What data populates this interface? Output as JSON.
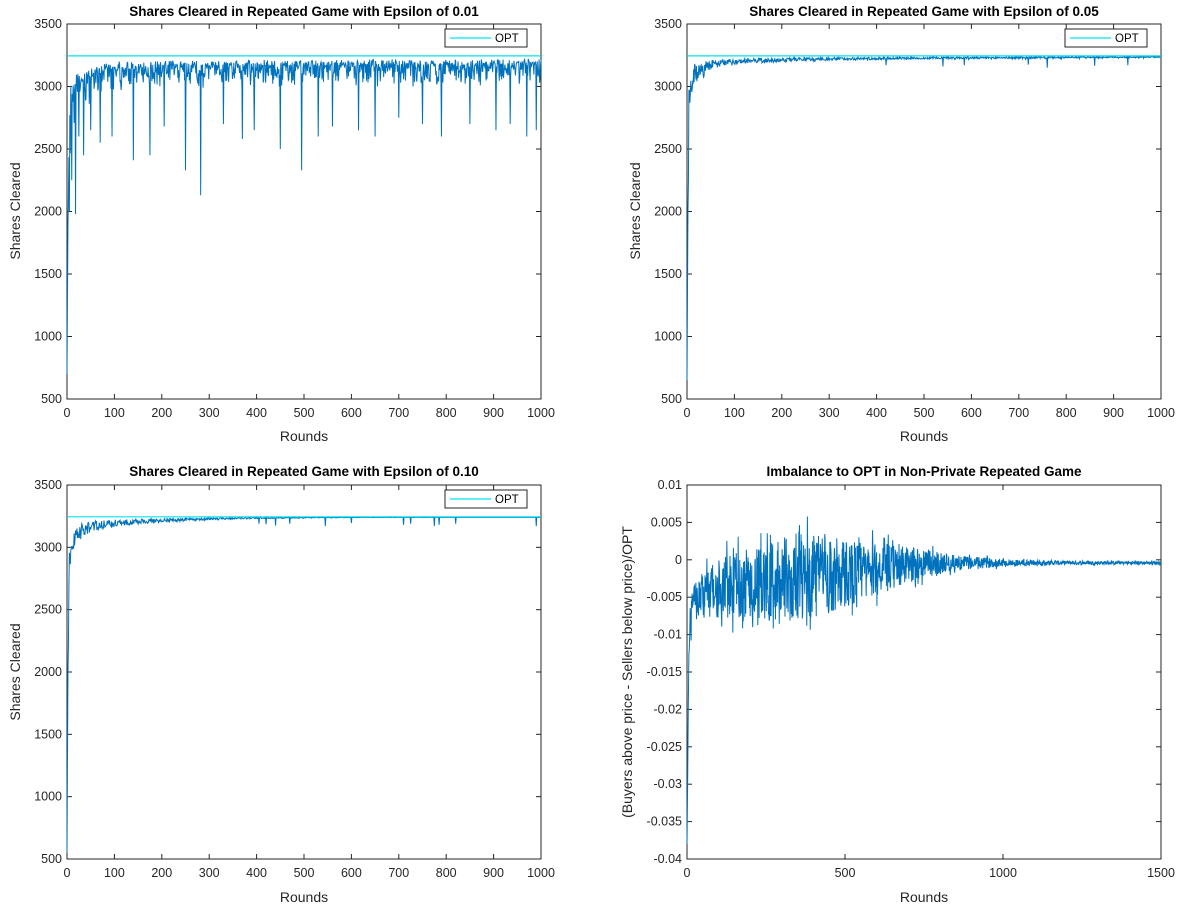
{
  "chart_data": [
    {
      "type": "line",
      "title": "Shares Cleared in Repeated Game with Epsilon of 0.01",
      "xlabel": "Rounds",
      "ylabel": "Shares Cleared",
      "xlim": [
        0,
        1000
      ],
      "ylim": [
        500,
        3500
      ],
      "xticks": [
        "0",
        "100",
        "200",
        "300",
        "400",
        "500",
        "600",
        "700",
        "800",
        "900",
        "1000"
      ],
      "yticks": [
        "500",
        "1000",
        "1500",
        "2000",
        "2500",
        "3000",
        "3500"
      ],
      "legend": {
        "entries": [
          "OPT"
        ],
        "placement": "top-right"
      },
      "grid": false,
      "colors": {
        "series": "#0072BD",
        "opt": "#00E5EE"
      },
      "series": [
        {
          "values_note_x": [
            0,
            2,
            5,
            8,
            12,
            20,
            30,
            45,
            60,
            80,
            100,
            130,
            160,
            200,
            250,
            300,
            400,
            500,
            600,
            700,
            800,
            900,
            1000
          ],
          "x": [
            0,
            2,
            5,
            8,
            12,
            20,
            30,
            45,
            60,
            80,
            100,
            130,
            160,
            200,
            250,
            300,
            400,
            500,
            600,
            700,
            800,
            900,
            1000
          ],
          "y": [
            700,
            1900,
            2500,
            2700,
            2850,
            2950,
            3020,
            3070,
            3100,
            3120,
            3140,
            3150,
            3155,
            3160,
            3165,
            3170,
            3172,
            3175,
            3178,
            3180,
            3182,
            3185,
            3190
          ]
        },
        {
          "name": "OPT",
          "x": [
            0,
            1000
          ],
          "y": [
            3245,
            3245
          ]
        }
      ],
      "dips": [
        [
          5,
          2000
        ],
        [
          10,
          2250
        ],
        [
          18,
          1980
        ],
        [
          25,
          2600
        ],
        [
          35,
          2450
        ],
        [
          50,
          2650
        ],
        [
          70,
          2550
        ],
        [
          95,
          2600
        ],
        [
          140,
          2410
        ],
        [
          175,
          2450
        ],
        [
          205,
          2680
        ],
        [
          250,
          2330
        ],
        [
          282,
          2130
        ],
        [
          330,
          2700
        ],
        [
          370,
          2580
        ],
        [
          395,
          2650
        ],
        [
          450,
          2500
        ],
        [
          495,
          2330
        ],
        [
          530,
          2600
        ],
        [
          560,
          2680
        ],
        [
          615,
          2650
        ],
        [
          650,
          2600
        ],
        [
          700,
          2750
        ],
        [
          750,
          2700
        ],
        [
          790,
          2600
        ],
        [
          850,
          2700
        ],
        [
          905,
          2650
        ],
        [
          935,
          2700
        ],
        [
          970,
          2600
        ],
        [
          990,
          2650
        ]
      ],
      "noise": 0.7
    },
    {
      "type": "line",
      "title": "Shares Cleared in Repeated Game with Epsilon of 0.05",
      "xlabel": "Rounds",
      "ylabel": "Shares Cleared",
      "xlim": [
        0,
        1000
      ],
      "ylim": [
        500,
        3500
      ],
      "xticks": [
        "0",
        "100",
        "200",
        "300",
        "400",
        "500",
        "600",
        "700",
        "800",
        "900",
        "1000"
      ],
      "yticks": [
        "500",
        "1000",
        "1500",
        "2000",
        "2500",
        "3000",
        "3500"
      ],
      "legend": {
        "entries": [
          "OPT"
        ],
        "placement": "top-right"
      },
      "grid": false,
      "colors": {
        "series": "#0072BD",
        "opt": "#00E5EE"
      },
      "series": [
        {
          "x": [
            0,
            2,
            5,
            8,
            12,
            20,
            30,
            45,
            60,
            80,
            100,
            130,
            160,
            200,
            250,
            300,
            400,
            500,
            600,
            700,
            800,
            900,
            1000
          ],
          "y": [
            650,
            2000,
            2700,
            2900,
            3000,
            3060,
            3100,
            3130,
            3150,
            3165,
            3175,
            3185,
            3190,
            3200,
            3205,
            3210,
            3215,
            3220,
            3222,
            3225,
            3228,
            3230,
            3232
          ]
        },
        {
          "name": "OPT",
          "x": [
            0,
            1000
          ],
          "y": [
            3245,
            3245
          ]
        }
      ],
      "dips": [
        [
          420,
          3170
        ],
        [
          540,
          3160
        ],
        [
          585,
          3170
        ],
        [
          720,
          3175
        ],
        [
          760,
          3150
        ],
        [
          860,
          3165
        ],
        [
          930,
          3170
        ]
      ],
      "noise": 0.15
    },
    {
      "type": "line",
      "title": "Shares Cleared in Repeated Game with Epsilon of 0.10",
      "xlabel": "Rounds",
      "ylabel": "Shares Cleared",
      "xlim": [
        0,
        1000
      ],
      "ylim": [
        500,
        3500
      ],
      "xticks": [
        "0",
        "100",
        "200",
        "300",
        "400",
        "500",
        "600",
        "700",
        "800",
        "900",
        "1000"
      ],
      "yticks": [
        "500",
        "1000",
        "1500",
        "2000",
        "2500",
        "3000",
        "3500"
      ],
      "legend": {
        "entries": [
          "OPT"
        ],
        "placement": "top-right"
      },
      "grid": false,
      "colors": {
        "series": "#0072BD",
        "opt": "#00E5EE"
      },
      "series": [
        {
          "x": [
            0,
            2,
            5,
            8,
            12,
            20,
            30,
            45,
            60,
            80,
            100,
            130,
            160,
            200,
            250,
            300,
            400,
            500,
            600,
            700,
            800,
            900,
            1000
          ],
          "y": [
            550,
            2000,
            2650,
            2850,
            2950,
            3020,
            3070,
            3110,
            3135,
            3150,
            3165,
            3180,
            3190,
            3200,
            3210,
            3220,
            3230,
            3235,
            3238,
            3240,
            3240,
            3242,
            3242
          ]
        },
        {
          "name": "OPT",
          "x": [
            0,
            1000
          ],
          "y": [
            3245,
            3245
          ]
        }
      ],
      "dips": [
        [
          405,
          3190
        ],
        [
          420,
          3185
        ],
        [
          440,
          3175
        ],
        [
          470,
          3190
        ],
        [
          545,
          3170
        ],
        [
          600,
          3195
        ],
        [
          710,
          3180
        ],
        [
          725,
          3190
        ],
        [
          775,
          3170
        ],
        [
          785,
          3180
        ],
        [
          820,
          3190
        ],
        [
          990,
          3170
        ]
      ],
      "noise": 0.04
    },
    {
      "type": "line",
      "title": "Imbalance to OPT in Non-Private Repeated Game",
      "xlabel": "Rounds",
      "ylabel": "(Buyers above price - Sellers below price)/OPT",
      "xlim": [
        0,
        1500
      ],
      "ylim": [
        -0.04,
        0.01
      ],
      "xticks": [
        "0",
        "500",
        "1000",
        "1500"
      ],
      "yticks": [
        "-0.04",
        "-0.035",
        "-0.03",
        "-0.025",
        "-0.02",
        "-0.015",
        "-0.01",
        "-0.005",
        "0",
        "0.005",
        "0.01"
      ],
      "grid": false,
      "colors": {
        "series": "#0072BD"
      },
      "series": [
        {
          "x": [
            0,
            2,
            5,
            10,
            20,
            40,
            80,
            150,
            250,
            350,
            450,
            550,
            650,
            750,
            850,
            950,
            1050,
            1200,
            1350,
            1500
          ],
          "y": [
            -0.038,
            -0.03,
            -0.015,
            -0.008,
            -0.006,
            -0.005,
            -0.004,
            -0.0035,
            -0.003,
            -0.002,
            -0.002,
            -0.0015,
            -0.001,
            -0.0005,
            -0.0004,
            -0.0004,
            -0.0004,
            -0.0004,
            -0.0004,
            -0.0004
          ]
        }
      ],
      "amplitude": [
        [
          0,
          0.002
        ],
        [
          100,
          0.004
        ],
        [
          250,
          0.005
        ],
        [
          350,
          0.006
        ],
        [
          450,
          0.0055
        ],
        [
          550,
          0.004
        ],
        [
          650,
          0.003
        ],
        [
          750,
          0.002
        ],
        [
          850,
          0.001
        ],
        [
          1000,
          0.0005
        ],
        [
          1200,
          0.00025
        ],
        [
          1500,
          0.0002
        ]
      ]
    }
  ]
}
